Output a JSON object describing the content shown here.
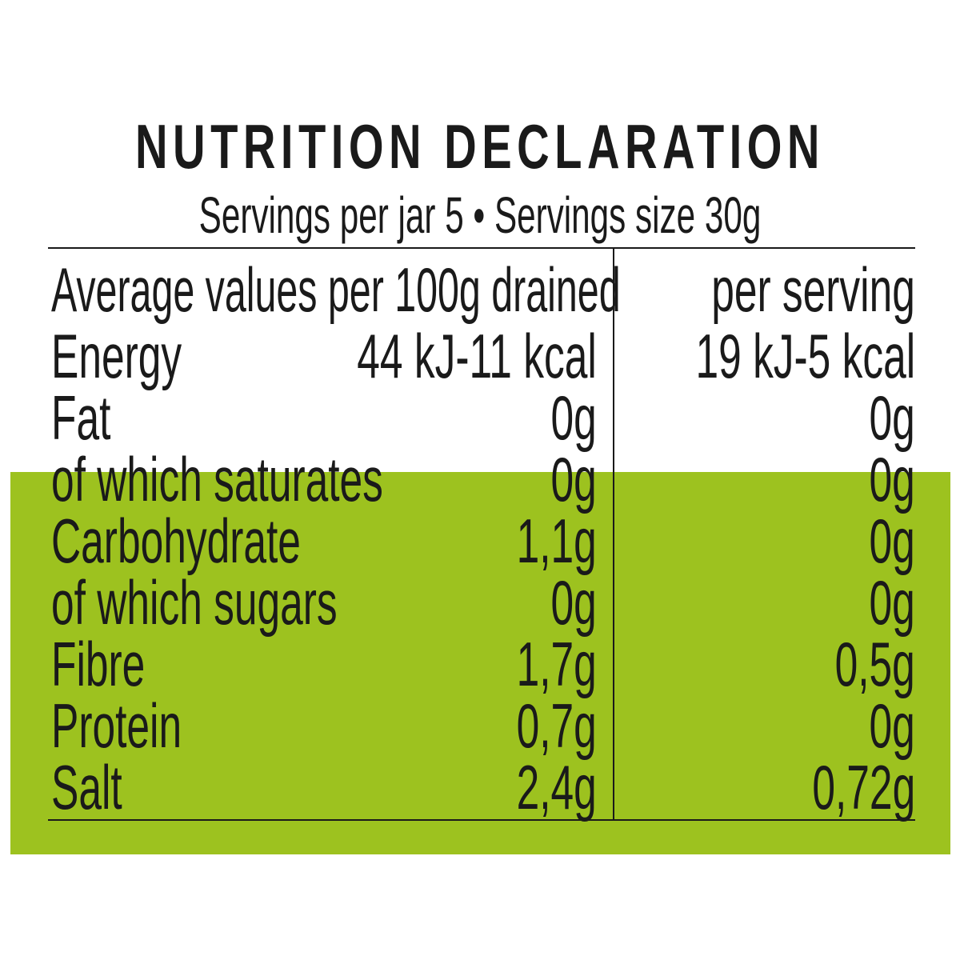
{
  "colors": {
    "band": "#9dc21f",
    "text": "#1a1a1a",
    "background": "#ffffff"
  },
  "title": "NUTRITION DECLARATION",
  "subtitle": "Servings per jar 5 • Servings size 30g",
  "header": {
    "col1": "Average values per 100g drained",
    "col2": "per serving"
  },
  "rows": [
    {
      "label": "Energy",
      "per100g": "44 kJ-11 kcal",
      "perServing": "19 kJ-5 kcal"
    },
    {
      "label": "Fat",
      "per100g": "0g",
      "perServing": "0g"
    },
    {
      "label": "of which saturates",
      "per100g": "0g",
      "perServing": "0g"
    },
    {
      "label": "Carbohydrate",
      "per100g": "1,1g",
      "perServing": "0g"
    },
    {
      "label": "of which sugars",
      "per100g": "0g",
      "perServing": "0g"
    },
    {
      "label": "Fibre",
      "per100g": "1,7g",
      "perServing": "0,5g"
    },
    {
      "label": "Protein",
      "per100g": "0,7g",
      "perServing": "0g"
    },
    {
      "label": "Salt",
      "per100g": "2,4g",
      "perServing": "0,72g"
    }
  ]
}
